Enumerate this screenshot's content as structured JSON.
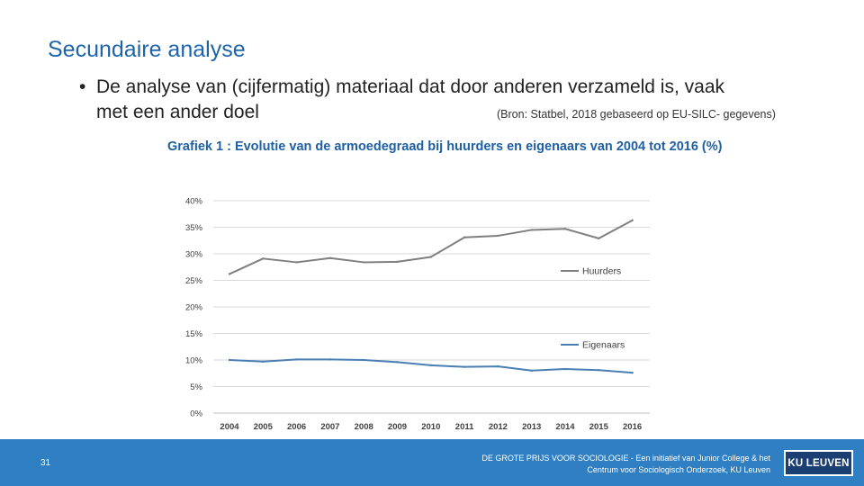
{
  "slide": {
    "title": "Secundaire analyse",
    "bullet_marker": "•",
    "bullet_line1": "De analyse van (cijfermatig) materiaal dat door anderen verzameld is, vaak",
    "bullet_line2": "met een ander doel",
    "source": "(Bron: Statbel, 2018 gebaseerd op EU-SILC- gegevens)"
  },
  "chart_data": {
    "type": "line",
    "title": "Grafiek 1 : Evolutie van de armoedegraad bij huurders en eigenaars van 2004 tot 2016 (%)",
    "categories": [
      "2004",
      "2005",
      "2006",
      "2007",
      "2008",
      "2009",
      "2010",
      "2011",
      "2012",
      "2013",
      "2014",
      "2015",
      "2016"
    ],
    "yticks": [
      "0%",
      "5%",
      "10%",
      "15%",
      "20%",
      "25%",
      "30%",
      "35%",
      "40%"
    ],
    "ylim": [
      0,
      40
    ],
    "grid": true,
    "series": [
      {
        "name": "Huurders",
        "color": "#7f7f7f",
        "values": [
          26.2,
          29.1,
          28.4,
          29.2,
          28.4,
          28.5,
          29.4,
          33.1,
          33.4,
          34.5,
          34.7,
          32.9,
          36.3
        ]
      },
      {
        "name": "Eigenaars",
        "color": "#4a7fb5",
        "values": [
          10.0,
          9.7,
          10.1,
          10.1,
          10.0,
          9.6,
          9.0,
          8.7,
          8.8,
          8.0,
          8.3,
          8.1,
          7.6
        ]
      }
    ]
  },
  "footer": {
    "page_number": "31",
    "line1": "DE GROTE PRIJS VOOR SOCIOLOGIE - Een initiatief van Junior College & het",
    "line2": "Centrum voor Sociologisch Onderzoek, KU Leuven",
    "logo_text": "KU LEUVEN"
  },
  "colors": {
    "title_blue": "#1e64ab",
    "footer_blue": "#2f7fc2",
    "logo_navy": "#1c3f73"
  }
}
